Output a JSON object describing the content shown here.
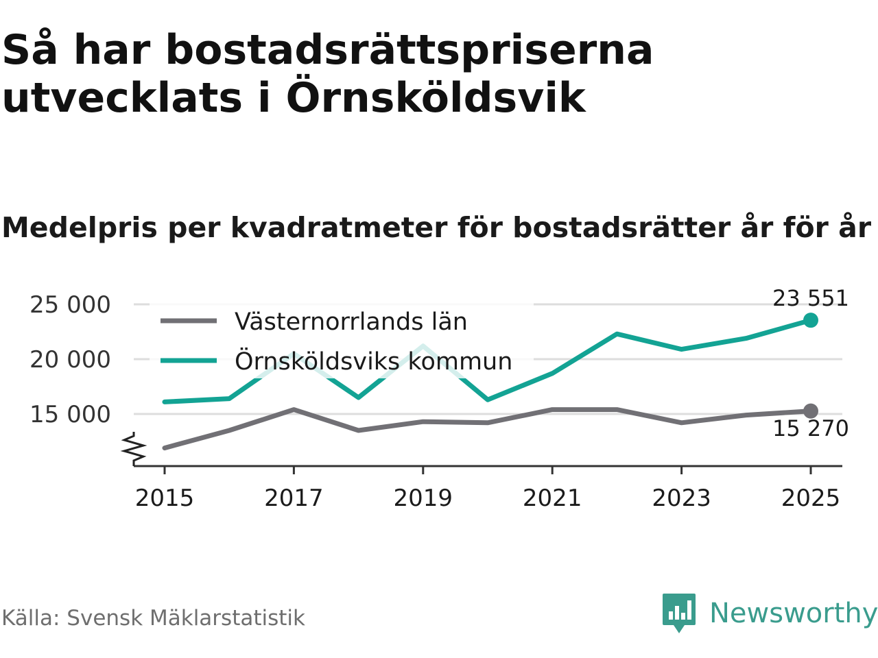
{
  "title": "Så har bostadsrättspriserna utvecklats i Örnsköldsvik",
  "subtitle": "Medelpris per kvadratmeter för bostadsrätter år för år",
  "source": "Källa: Svensk Mäklarstatistik",
  "brand": "Newsworthy",
  "colors": {
    "lan": "#717075",
    "kommun": "#13a394",
    "grid": "#dddddd",
    "axis": "#333333",
    "brand": "#3a9c8d"
  },
  "chart_data": {
    "type": "line",
    "title": "Medelpris per kvadratmeter för bostadsrätter år för år",
    "xlabel": "",
    "ylabel": "",
    "x": [
      2015,
      2016,
      2017,
      2018,
      2019,
      2020,
      2021,
      2022,
      2023,
      2024,
      2025
    ],
    "xticks": [
      2015,
      2017,
      2019,
      2021,
      2023,
      2025
    ],
    "xtick_labels": [
      "2015",
      "2017",
      "2019",
      "2021",
      "2023",
      "2025"
    ],
    "yticks": [
      15000,
      20000,
      25000
    ],
    "ytick_labels": [
      "15 000",
      "20 000",
      "25 000"
    ],
    "ylim": [
      10000,
      25000
    ],
    "ylim_note": "axis break below 15 000",
    "grid": true,
    "legend_position": "top-left",
    "series": [
      {
        "name": "Västernorrlands län",
        "color": "#717075",
        "values": [
          11900,
          13500,
          15400,
          13500,
          14300,
          14200,
          15400,
          15400,
          14200,
          14900,
          15270
        ]
      },
      {
        "name": "Örnsköldsviks kommun",
        "color": "#13a394",
        "values": [
          16100,
          16400,
          20500,
          16500,
          21200,
          16300,
          18700,
          22300,
          20900,
          21900,
          23551
        ]
      }
    ],
    "end_labels": [
      {
        "series": "Örnsköldsviks kommun",
        "text": "23 551"
      },
      {
        "series": "Västernorrlands län",
        "text": "15 270"
      }
    ]
  }
}
